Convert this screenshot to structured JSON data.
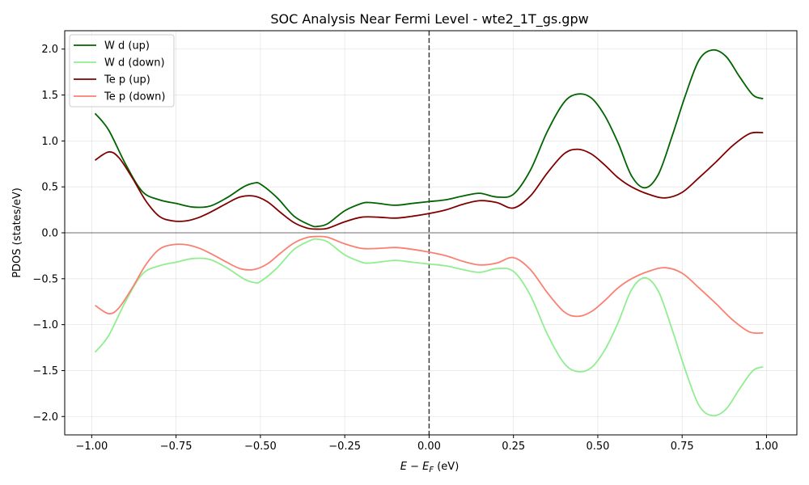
{
  "chart_data": {
    "type": "line",
    "title": "SOC Analysis Near Fermi Level - wte2_1T_gs.gpw",
    "xlabel_main": "E − E",
    "xlabel_sub": "F",
    "xlabel_unit": " (eV)",
    "ylabel": "PDOS (states/eV)",
    "xlim": [
      -1.08,
      1.09
    ],
    "ylim": [
      -2.2,
      2.2
    ],
    "xticks": [
      -1.0,
      -0.75,
      -0.5,
      -0.25,
      0.0,
      0.25,
      0.5,
      0.75,
      1.0
    ],
    "xtick_labels": [
      "−1.00",
      "−0.75",
      "−0.50",
      "−0.25",
      "0.00",
      "0.25",
      "0.50",
      "0.75",
      "1.00"
    ],
    "yticks": [
      -2.0,
      -1.5,
      -1.0,
      -0.5,
      0.0,
      0.5,
      1.0,
      1.5,
      2.0
    ],
    "ytick_labels": [
      "−2.0",
      "−1.5",
      "−1.0",
      "−0.5",
      "0.0",
      "0.5",
      "1.0",
      "1.5",
      "2.0"
    ],
    "grid": true,
    "legend_position": "top-left",
    "fermi_level_line": 0.0,
    "zero_line": 0.0,
    "series": [
      {
        "name": "W d (up)",
        "color": "#006400",
        "x": [
          -0.99,
          -0.95,
          -0.9,
          -0.85,
          -0.8,
          -0.75,
          -0.7,
          -0.65,
          -0.6,
          -0.55,
          -0.52,
          -0.5,
          -0.45,
          -0.4,
          -0.35,
          -0.33,
          -0.3,
          -0.25,
          -0.2,
          -0.18,
          -0.15,
          -0.1,
          -0.05,
          0.0,
          0.05,
          0.1,
          0.15,
          0.2,
          0.25,
          0.3,
          0.35,
          0.4,
          0.44,
          0.48,
          0.52,
          0.56,
          0.6,
          0.64,
          0.68,
          0.72,
          0.76,
          0.8,
          0.84,
          0.88,
          0.92,
          0.96,
          0.99
        ],
        "y": [
          1.3,
          1.12,
          0.75,
          0.45,
          0.36,
          0.32,
          0.28,
          0.29,
          0.38,
          0.5,
          0.54,
          0.53,
          0.38,
          0.18,
          0.08,
          0.07,
          0.1,
          0.24,
          0.32,
          0.33,
          0.32,
          0.3,
          0.32,
          0.34,
          0.36,
          0.4,
          0.43,
          0.39,
          0.42,
          0.68,
          1.1,
          1.42,
          1.51,
          1.47,
          1.28,
          0.98,
          0.62,
          0.49,
          0.64,
          1.05,
          1.5,
          1.88,
          1.99,
          1.92,
          1.7,
          1.5,
          1.46
        ]
      },
      {
        "name": "W d (down)",
        "color": "#90ee90",
        "x": [
          -0.99,
          -0.95,
          -0.9,
          -0.85,
          -0.8,
          -0.75,
          -0.7,
          -0.65,
          -0.6,
          -0.55,
          -0.52,
          -0.5,
          -0.45,
          -0.4,
          -0.35,
          -0.33,
          -0.3,
          -0.25,
          -0.2,
          -0.18,
          -0.15,
          -0.1,
          -0.05,
          0.0,
          0.05,
          0.1,
          0.15,
          0.2,
          0.25,
          0.3,
          0.35,
          0.4,
          0.44,
          0.48,
          0.52,
          0.56,
          0.6,
          0.64,
          0.68,
          0.72,
          0.76,
          0.8,
          0.84,
          0.88,
          0.92,
          0.96,
          0.99
        ],
        "y": [
          -1.3,
          -1.12,
          -0.75,
          -0.45,
          -0.36,
          -0.32,
          -0.28,
          -0.29,
          -0.38,
          -0.5,
          -0.54,
          -0.53,
          -0.38,
          -0.18,
          -0.08,
          -0.07,
          -0.1,
          -0.24,
          -0.32,
          -0.33,
          -0.32,
          -0.3,
          -0.32,
          -0.34,
          -0.36,
          -0.4,
          -0.43,
          -0.39,
          -0.42,
          -0.68,
          -1.1,
          -1.42,
          -1.51,
          -1.47,
          -1.28,
          -0.98,
          -0.62,
          -0.49,
          -0.64,
          -1.05,
          -1.5,
          -1.88,
          -1.99,
          -1.92,
          -1.7,
          -1.5,
          -1.46
        ]
      },
      {
        "name": "Te p (up)",
        "color": "#800000",
        "x": [
          -0.99,
          -0.95,
          -0.92,
          -0.88,
          -0.84,
          -0.8,
          -0.76,
          -0.72,
          -0.68,
          -0.64,
          -0.6,
          -0.56,
          -0.52,
          -0.48,
          -0.44,
          -0.4,
          -0.36,
          -0.33,
          -0.3,
          -0.25,
          -0.2,
          -0.15,
          -0.1,
          -0.05,
          0.0,
          0.05,
          0.1,
          0.15,
          0.2,
          0.25,
          0.3,
          0.35,
          0.4,
          0.44,
          0.48,
          0.52,
          0.56,
          0.6,
          0.65,
          0.7,
          0.75,
          0.8,
          0.85,
          0.9,
          0.95,
          0.99
        ],
        "y": [
          0.79,
          0.88,
          0.82,
          0.6,
          0.35,
          0.18,
          0.13,
          0.13,
          0.17,
          0.24,
          0.32,
          0.39,
          0.4,
          0.34,
          0.22,
          0.11,
          0.05,
          0.04,
          0.05,
          0.12,
          0.17,
          0.17,
          0.16,
          0.18,
          0.21,
          0.25,
          0.31,
          0.35,
          0.33,
          0.27,
          0.4,
          0.65,
          0.86,
          0.91,
          0.86,
          0.74,
          0.6,
          0.5,
          0.42,
          0.38,
          0.44,
          0.6,
          0.77,
          0.95,
          1.08,
          1.09
        ]
      },
      {
        "name": "Te p (down)",
        "color": "#fa8072",
        "x": [
          -0.99,
          -0.95,
          -0.92,
          -0.88,
          -0.84,
          -0.8,
          -0.76,
          -0.72,
          -0.68,
          -0.64,
          -0.6,
          -0.56,
          -0.52,
          -0.48,
          -0.44,
          -0.4,
          -0.36,
          -0.33,
          -0.3,
          -0.25,
          -0.2,
          -0.15,
          -0.1,
          -0.05,
          0.0,
          0.05,
          0.1,
          0.15,
          0.2,
          0.25,
          0.3,
          0.35,
          0.4,
          0.44,
          0.48,
          0.52,
          0.56,
          0.6,
          0.65,
          0.7,
          0.75,
          0.8,
          0.85,
          0.9,
          0.95,
          0.99
        ],
        "y": [
          -0.79,
          -0.88,
          -0.82,
          -0.6,
          -0.35,
          -0.18,
          -0.13,
          -0.13,
          -0.17,
          -0.24,
          -0.32,
          -0.39,
          -0.4,
          -0.34,
          -0.22,
          -0.11,
          -0.05,
          -0.04,
          -0.05,
          -0.12,
          -0.17,
          -0.17,
          -0.16,
          -0.18,
          -0.21,
          -0.25,
          -0.31,
          -0.35,
          -0.33,
          -0.27,
          -0.4,
          -0.65,
          -0.86,
          -0.91,
          -0.86,
          -0.74,
          -0.6,
          -0.5,
          -0.42,
          -0.38,
          -0.44,
          -0.6,
          -0.77,
          -0.95,
          -1.08,
          -1.09
        ]
      }
    ]
  }
}
